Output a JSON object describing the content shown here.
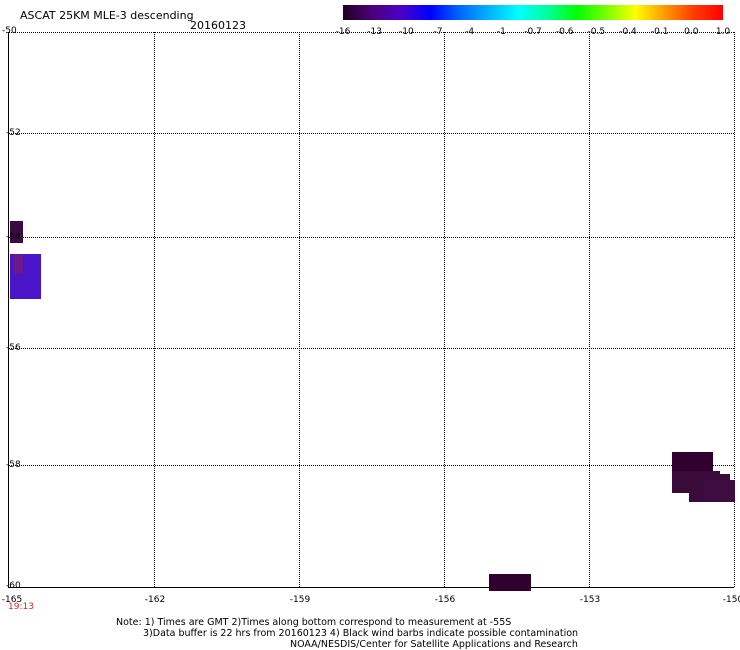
{
  "header": {
    "title": "ASCAT 25KM MLE-3 descending",
    "date": "20160123"
  },
  "colorbar": {
    "ticks": [
      "-16",
      "-13",
      "-10",
      "-7",
      "-4",
      "-1",
      "-0.7",
      "-0.6",
      "-0.5",
      "-0.4",
      "-0.1",
      "0.0",
      "1.0"
    ],
    "colors": [
      "#200020",
      "#4b007a",
      "#4a00c8",
      "#0000ff",
      "#0068ff",
      "#00b4ff",
      "#00ffff",
      "#00ff9a",
      "#00ff00",
      "#78ff00",
      "#ffff00",
      "#ff9a00",
      "#ff3c00",
      "#ff0000"
    ]
  },
  "axes": {
    "y_labels": [
      "-50",
      "-52",
      "-54",
      "-56",
      "-58",
      "-60"
    ],
    "x_labels": [
      "-165",
      "-162",
      "-159",
      "-156",
      "-153",
      "-150"
    ],
    "time_label": "19:13"
  },
  "map_data": {
    "lon_range": [
      -165,
      -150
    ],
    "lat_range": [
      -60,
      -50
    ],
    "cells": [
      {
        "lon0": -164.98,
        "lon1": -164.72,
        "lat0": -53.8,
        "lat1": -53.4,
        "color": "#3a0a40"
      },
      {
        "lon0": -164.98,
        "lon1": -164.33,
        "lat0": -54.8,
        "lat1": -54.0,
        "color": "#4a14c8"
      },
      {
        "lon0": -164.9,
        "lon1": -164.72,
        "lat0": -54.35,
        "lat1": -54.0,
        "color": "#6a1a8a"
      },
      {
        "lon0": -155.08,
        "lon1": -154.22,
        "lat0": -60.05,
        "lat1": -59.75,
        "color": "#30002e"
      },
      {
        "lon0": -151.3,
        "lon1": -150.45,
        "lat0": -57.9,
        "lat1": -57.55,
        "color": "#32002e"
      },
      {
        "lon0": -151.3,
        "lon1": -150.3,
        "lat0": -58.3,
        "lat1": -57.9,
        "color": "#3a0a3a"
      },
      {
        "lon0": -150.95,
        "lon1": -150.1,
        "lat0": -58.45,
        "lat1": -57.95,
        "color": "#3a0a3a"
      },
      {
        "lon0": -150.65,
        "lon1": -150.0,
        "lat0": -58.45,
        "lat1": -58.05,
        "color": "#3e0c40"
      }
    ]
  },
  "footer": {
    "line1": "Note: 1) Times are GMT 2)Times along bottom correspond to measurement at -55S",
    "line2": "3)Data buffer is 22 hrs from 20160123 4) Black wind barbs indicate possible contamination",
    "line3": "NOAA/NESDIS/Center for Satellite Applications and Research"
  }
}
